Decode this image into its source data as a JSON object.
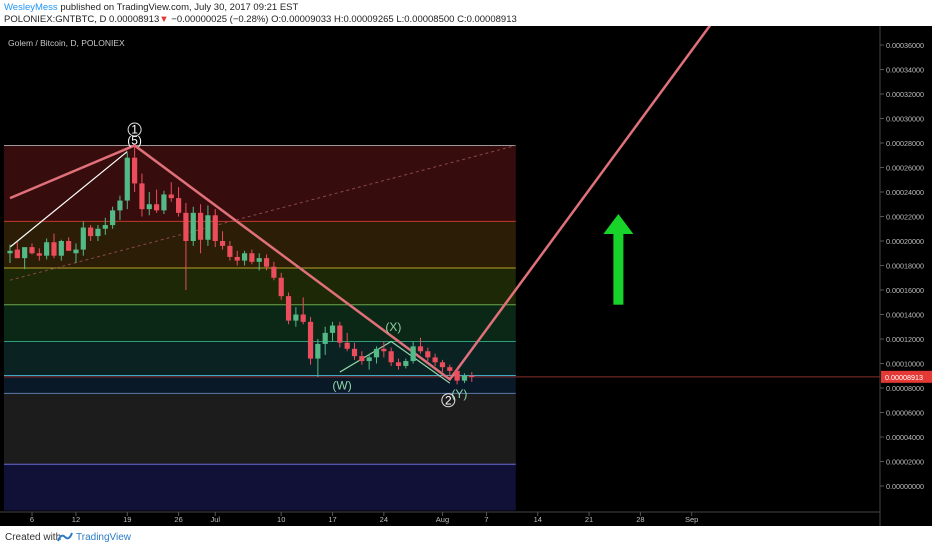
{
  "header": {
    "author": "WesleyMess",
    "published_text": "published on TradingView.com, July 30, 2017 09:21 EST",
    "symbol_line_prefix": "POLONIEX:GNTBTC, D  0.00008913",
    "change_arrow": "▼",
    "change_text": "−0.00000025 (−0.28%)",
    "ohlc_text": "O:0.00009033 H:0.00009265 L:0.00008500 C:0.00008913"
  },
  "chart_title": "Golem / Bitcoin, D, POLONIEX",
  "footer": {
    "created_with": "Created with",
    "brand": "TradingView"
  },
  "colors": {
    "background": "#000000",
    "up_candle": "#53b987",
    "down_candle": "#eb4d5c",
    "trend_line": "#e0707a",
    "arrow": "#18d32a",
    "price_line": "#8a2f2f"
  },
  "chart_data": {
    "type": "candlestick",
    "x_ticks": [
      "6",
      "12",
      "19",
      "26",
      "Jul",
      "10",
      "17",
      "24",
      "Aug",
      "7",
      "14",
      "21",
      "28",
      "Sep"
    ],
    "y_ticks": [
      "0.00036000",
      "0.00034000",
      "0.00032000",
      "0.00030000",
      "0.00028000",
      "0.00026000",
      "0.00024000",
      "0.00022000",
      "0.00020000",
      "0.00018000",
      "0.00016000",
      "0.00014000",
      "0.00012000",
      "0.00010000",
      "0.00008000",
      "0.00006000",
      "0.00004000",
      "0.00002000",
      "0.00000000"
    ],
    "ylim": [
      -2e-05,
      0.000375
    ],
    "last_price_label": "0.00008913",
    "last_price": 8.913e-05,
    "start_date": "2017-06-03",
    "candles": [
      {
        "o": 0.00019,
        "h": 0.000197,
        "l": 0.000182,
        "c": 0.000192
      },
      {
        "o": 0.000193,
        "h": 0.000199,
        "l": 0.000186,
        "c": 0.000186
      },
      {
        "o": 0.000186,
        "h": 0.000193,
        "l": 0.000177,
        "c": 0.000195
      },
      {
        "o": 0.000195,
        "h": 0.000198,
        "l": 0.000189,
        "c": 0.00019
      },
      {
        "o": 0.00019,
        "h": 0.000194,
        "l": 0.000184,
        "c": 0.000188
      },
      {
        "o": 0.000188,
        "h": 0.000202,
        "l": 0.000185,
        "c": 0.000199
      },
      {
        "o": 0.000199,
        "h": 0.000206,
        "l": 0.000186,
        "c": 0.000188
      },
      {
        "o": 0.000188,
        "h": 0.000201,
        "l": 0.000184,
        "c": 0.0002
      },
      {
        "o": 0.0002,
        "h": 0.000203,
        "l": 0.000192,
        "c": 0.000192
      },
      {
        "o": 0.00019,
        "h": 0.000198,
        "l": 0.000182,
        "c": 0.000193
      },
      {
        "o": 0.000193,
        "h": 0.000216,
        "l": 0.000188,
        "c": 0.000211
      },
      {
        "o": 0.000211,
        "h": 0.000213,
        "l": 0.0002,
        "c": 0.000204
      },
      {
        "o": 0.000204,
        "h": 0.000213,
        "l": 0.0002,
        "c": 0.00021
      },
      {
        "o": 0.00021,
        "h": 0.000219,
        "l": 0.000205,
        "c": 0.000213
      },
      {
        "o": 0.000213,
        "h": 0.000228,
        "l": 0.00021,
        "c": 0.000225
      },
      {
        "o": 0.000225,
        "h": 0.000237,
        "l": 0.000217,
        "c": 0.000233
      },
      {
        "o": 0.000233,
        "h": 0.000272,
        "l": 0.000226,
        "c": 0.000268
      },
      {
        "o": 0.000268,
        "h": 0.000279,
        "l": 0.00024,
        "c": 0.000247
      },
      {
        "o": 0.000247,
        "h": 0.000255,
        "l": 0.00022,
        "c": 0.000226
      },
      {
        "o": 0.000226,
        "h": 0.00024,
        "l": 0.000221,
        "c": 0.00023
      },
      {
        "o": 0.00023,
        "h": 0.000242,
        "l": 0.000223,
        "c": 0.000225
      },
      {
        "o": 0.000225,
        "h": 0.000241,
        "l": 0.000222,
        "c": 0.000238
      },
      {
        "o": 0.000238,
        "h": 0.000248,
        "l": 0.000232,
        "c": 0.000235
      },
      {
        "o": 0.000235,
        "h": 0.000244,
        "l": 0.00022,
        "c": 0.000223
      },
      {
        "o": 0.000223,
        "h": 0.000231,
        "l": 0.00016,
        "c": 0.0002
      },
      {
        "o": 0.0002,
        "h": 0.000228,
        "l": 0.000196,
        "c": 0.000223
      },
      {
        "o": 0.000223,
        "h": 0.00023,
        "l": 0.00019,
        "c": 0.000201
      },
      {
        "o": 0.000201,
        "h": 0.000229,
        "l": 0.000196,
        "c": 0.000221
      },
      {
        "o": 0.000221,
        "h": 0.000226,
        "l": 0.000195,
        "c": 0.0002
      },
      {
        "o": 0.0002,
        "h": 0.000208,
        "l": 0.000193,
        "c": 0.000196
      },
      {
        "o": 0.000196,
        "h": 0.0002,
        "l": 0.000184,
        "c": 0.000187
      },
      {
        "o": 0.000187,
        "h": 0.000192,
        "l": 0.00018,
        "c": 0.000184
      },
      {
        "o": 0.000184,
        "h": 0.000192,
        "l": 0.00018,
        "c": 0.00019
      },
      {
        "o": 0.00019,
        "h": 0.000193,
        "l": 0.000181,
        "c": 0.000183
      },
      {
        "o": 0.000183,
        "h": 0.00019,
        "l": 0.000176,
        "c": 0.000186
      },
      {
        "o": 0.000186,
        "h": 0.000189,
        "l": 0.000176,
        "c": 0.000179
      },
      {
        "o": 0.000179,
        "h": 0.000183,
        "l": 0.000168,
        "c": 0.00017
      },
      {
        "o": 0.00017,
        "h": 0.000174,
        "l": 0.000152,
        "c": 0.000155
      },
      {
        "o": 0.000155,
        "h": 0.000158,
        "l": 0.000132,
        "c": 0.000135
      },
      {
        "o": 0.000135,
        "h": 0.000146,
        "l": 0.00013,
        "c": 0.00014
      },
      {
        "o": 0.00014,
        "h": 0.000154,
        "l": 0.000132,
        "c": 0.000134
      },
      {
        "o": 0.000134,
        "h": 0.000138,
        "l": 9.9e-05,
        "c": 0.000104
      },
      {
        "o": 0.000104,
        "h": 0.00012,
        "l": 8.9e-05,
        "c": 0.000116
      },
      {
        "o": 0.000116,
        "h": 0.00013,
        "l": 0.000107,
        "c": 0.000125
      },
      {
        "o": 0.000125,
        "h": 0.000134,
        "l": 0.000118,
        "c": 0.000131
      },
      {
        "o": 0.000131,
        "h": 0.000134,
        "l": 0.000113,
        "c": 0.000117
      },
      {
        "o": 0.000117,
        "h": 0.000125,
        "l": 0.00011,
        "c": 0.000112
      },
      {
        "o": 0.000112,
        "h": 0.000117,
        "l": 0.000103,
        "c": 0.000106
      },
      {
        "o": 0.000106,
        "h": 0.00011,
        "l": 9.9e-05,
        "c": 0.000102
      },
      {
        "o": 0.000102,
        "h": 0.000108,
        "l": 9.5e-05,
        "c": 0.000105
      },
      {
        "o": 0.000105,
        "h": 0.000114,
        "l": 0.0001,
        "c": 0.000112
      },
      {
        "o": 0.000112,
        "h": 0.000118,
        "l": 0.000105,
        "c": 0.00011
      },
      {
        "o": 0.00011,
        "h": 0.000113,
        "l": 9.8e-05,
        "c": 0.000101
      },
      {
        "o": 0.000101,
        "h": 0.000104,
        "l": 9.5e-05,
        "c": 9.8e-05
      },
      {
        "o": 9.8e-05,
        "h": 0.000104,
        "l": 9.6e-05,
        "c": 0.000102
      },
      {
        "o": 0.000102,
        "h": 0.000118,
        "l": 0.0001,
        "c": 0.000114
      },
      {
        "o": 0.000114,
        "h": 0.000121,
        "l": 0.000108,
        "c": 0.00011
      },
      {
        "o": 0.00011,
        "h": 0.000113,
        "l": 0.000102,
        "c": 0.000105
      },
      {
        "o": 0.000105,
        "h": 0.000108,
        "l": 9.8e-05,
        "c": 0.000101
      },
      {
        "o": 0.000101,
        "h": 0.000103,
        "l": 9.3e-05,
        "c": 9.7e-05
      },
      {
        "o": 9.7e-05,
        "h": 9.9e-05,
        "l": 9e-05,
        "c": 9.4e-05
      },
      {
        "o": 9.4e-05,
        "h": 9.6e-05,
        "l": 8.3e-05,
        "c": 8.6e-05
      },
      {
        "o": 8.6e-05,
        "h": 9.2e-05,
        "l": 8.4e-05,
        "c": 9e-05
      },
      {
        "o": 9e-05,
        "h": 9.3e-05,
        "l": 8.5e-05,
        "c": 8.9e-05
      }
    ],
    "fib_levels": [
      0.000278,
      0.000216,
      0.000178,
      0.000148,
      0.000118,
      9.02e-05,
      7.56e-05,
      1.78e-05
    ],
    "wave_labels": [
      {
        "text": "1",
        "circled": true,
        "date_index": 17.0,
        "price": 0.000291
      },
      {
        "text": "(5)",
        "circled": false,
        "date_index": 17.0,
        "price": 0.000282
      },
      {
        "text": "(X)",
        "circled": false,
        "date_index": 52.3,
        "price": 0.00013
      },
      {
        "text": "(W)",
        "circled": false,
        "date_index": 45.3,
        "price": 8.2e-05
      },
      {
        "text": "(Y)",
        "circled": false,
        "date_index": 61.3,
        "price": 7.5e-05
      },
      {
        "text": "2",
        "circled": true,
        "date_index": 59.8,
        "price": 7e-05
      }
    ],
    "trend_lines": [
      {
        "kind": "projection",
        "color": "#e0707a",
        "points": [
          [
            0,
            0.000235
          ],
          [
            17,
            0.000278
          ],
          [
            60,
            8.7e-05
          ],
          [
            96,
            0.00038
          ]
        ]
      },
      {
        "kind": "thin",
        "color": "#ffffff",
        "points": [
          [
            0,
            0.000195
          ],
          [
            16,
            0.000273
          ]
        ]
      },
      {
        "kind": "dashed",
        "color": "#8a4848",
        "points": [
          [
            0,
            0.000168
          ],
          [
            69,
            0.000278
          ]
        ]
      },
      {
        "kind": "wxy",
        "color": "#8fd4a6",
        "points": [
          [
            45,
            9.3e-05
          ],
          [
            52,
            0.000118
          ],
          [
            60,
            8.4e-05
          ]
        ]
      }
    ],
    "arrow": {
      "date_index": 83,
      "from": 0.000148,
      "to": 0.000222
    },
    "grid": false
  }
}
